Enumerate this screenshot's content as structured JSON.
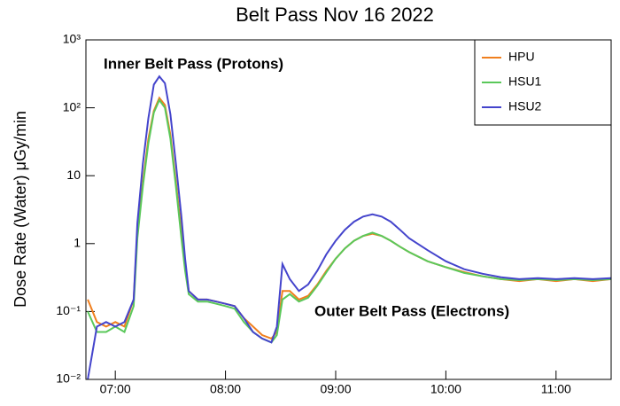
{
  "chart_data": {
    "type": "line",
    "title": "Belt Pass Nov 16 2022",
    "y_label": "Dose Rate (Water) μGy/min",
    "annotations": [
      "Inner Belt Pass (Protons)",
      "Outer Belt Pass (Electrons)"
    ],
    "x": [
      405,
      410,
      415,
      420,
      425,
      430,
      432,
      435,
      438,
      441,
      444,
      447,
      450,
      453,
      456,
      458,
      460,
      465,
      470,
      475,
      480,
      485,
      490,
      495,
      500,
      505,
      508,
      511,
      515,
      520,
      525,
      530,
      535,
      540,
      545,
      550,
      555,
      560,
      565,
      570,
      575,
      580,
      590,
      600,
      610,
      620,
      630,
      640,
      650,
      660,
      670,
      680,
      690
    ],
    "series": [
      {
        "name": "HPU",
        "color": "#f07f1e",
        "values": [
          0.15,
          0.07,
          0.06,
          0.07,
          0.06,
          0.15,
          1.5,
          8,
          35,
          90,
          140,
          110,
          40,
          8,
          1.5,
          0.5,
          0.2,
          0.15,
          0.15,
          0.14,
          0.13,
          0.12,
          0.08,
          0.06,
          0.045,
          0.04,
          0.05,
          0.2,
          0.2,
          0.15,
          0.17,
          0.25,
          0.4,
          0.6,
          0.85,
          1.1,
          1.3,
          1.4,
          1.3,
          1.1,
          0.9,
          0.75,
          0.55,
          0.45,
          0.38,
          0.33,
          0.3,
          0.28,
          0.3,
          0.28,
          0.3,
          0.28,
          0.3
        ]
      },
      {
        "name": "HSU1",
        "color": "#5ac85a",
        "values": [
          0.1,
          0.05,
          0.05,
          0.06,
          0.05,
          0.12,
          1.2,
          7,
          30,
          85,
          130,
          100,
          35,
          7,
          1.2,
          0.4,
          0.18,
          0.14,
          0.14,
          0.13,
          0.12,
          0.11,
          0.07,
          0.05,
          0.04,
          0.035,
          0.045,
          0.15,
          0.18,
          0.14,
          0.16,
          0.24,
          0.38,
          0.6,
          0.85,
          1.1,
          1.3,
          1.45,
          1.3,
          1.1,
          0.9,
          0.75,
          0.55,
          0.45,
          0.37,
          0.33,
          0.3,
          0.29,
          0.3,
          0.29,
          0.3,
          0.29,
          0.3
        ]
      },
      {
        "name": "HSU2",
        "color": "#4444cc",
        "values": [
          0.01,
          0.06,
          0.07,
          0.06,
          0.07,
          0.15,
          2,
          15,
          70,
          220,
          290,
          230,
          80,
          15,
          2.5,
          0.6,
          0.2,
          0.15,
          0.15,
          0.14,
          0.13,
          0.12,
          0.08,
          0.05,
          0.04,
          0.035,
          0.06,
          0.5,
          0.3,
          0.2,
          0.25,
          0.4,
          0.7,
          1.1,
          1.6,
          2.1,
          2.5,
          2.7,
          2.5,
          2.1,
          1.6,
          1.2,
          0.8,
          0.55,
          0.42,
          0.36,
          0.32,
          0.3,
          0.31,
          0.3,
          0.31,
          0.3,
          0.31
        ]
      }
    ],
    "xlim": [
      404,
      690
    ],
    "xticks": [
      {
        "value": 420,
        "label": "07:00"
      },
      {
        "value": 480,
        "label": "08:00"
      },
      {
        "value": 540,
        "label": "09:00"
      },
      {
        "value": 600,
        "label": "10:00"
      },
      {
        "value": 660,
        "label": "11:00"
      }
    ],
    "ylim": [
      0.01,
      1000
    ],
    "yticks": [
      {
        "value": 0.01,
        "label": "10⁻²"
      },
      {
        "value": 0.1,
        "label": "10⁻¹"
      },
      1,
      10,
      {
        "value": 100,
        "label": "10²"
      },
      {
        "value": 1000,
        "label": "10³"
      }
    ],
    "y_scale": "log",
    "legend": "upper right"
  }
}
